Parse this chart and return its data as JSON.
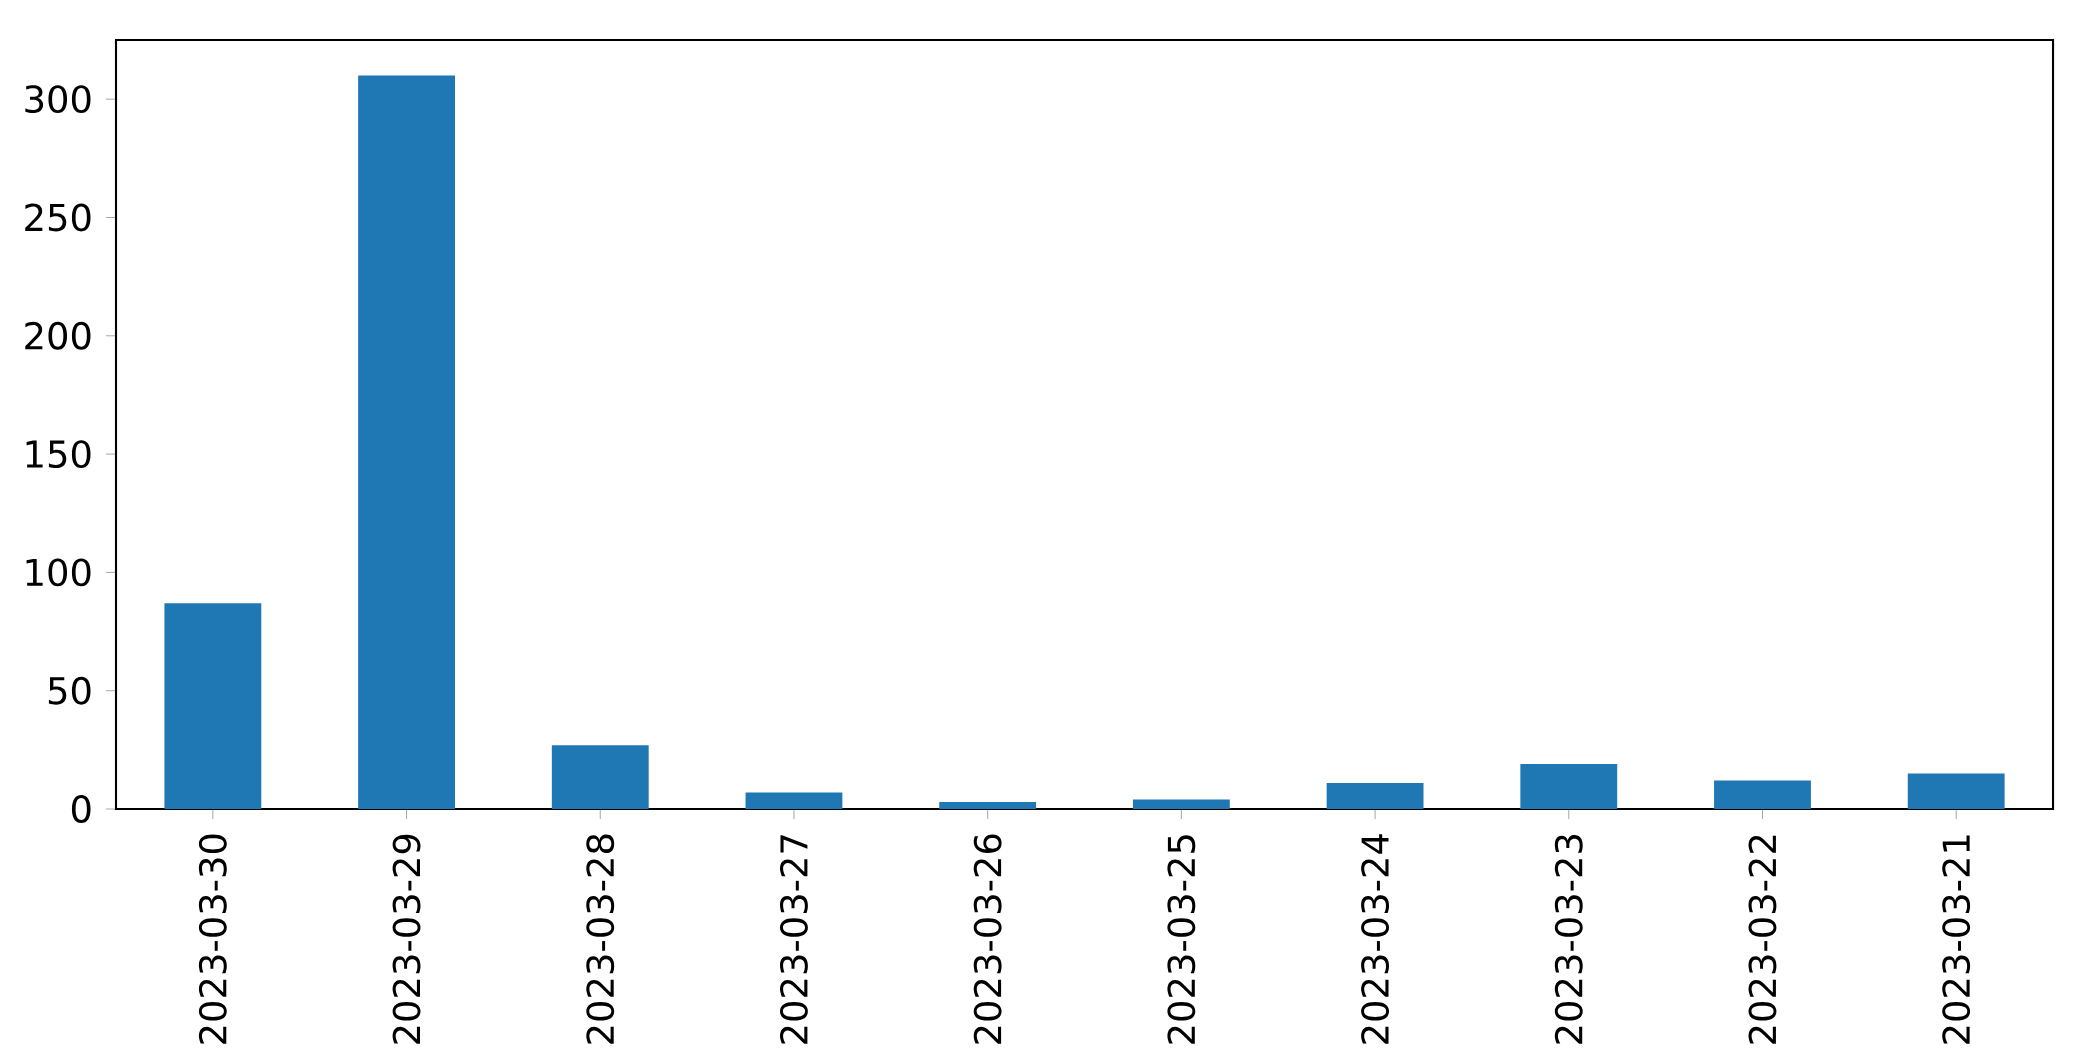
{
  "chart_data": {
    "type": "bar",
    "categories": [
      "2023-03-30",
      "2023-03-29",
      "2023-03-28",
      "2023-03-27",
      "2023-03-26",
      "2023-03-25",
      "2023-03-24",
      "2023-03-23",
      "2023-03-22",
      "2023-03-21"
    ],
    "values": [
      87,
      310,
      27,
      7,
      3,
      4,
      11,
      19,
      12,
      15
    ],
    "color": "#1f77b4",
    "ylim": [
      0,
      325
    ],
    "yticks": [
      0,
      50,
      100,
      150,
      200,
      250,
      300
    ],
    "grid": false
  }
}
